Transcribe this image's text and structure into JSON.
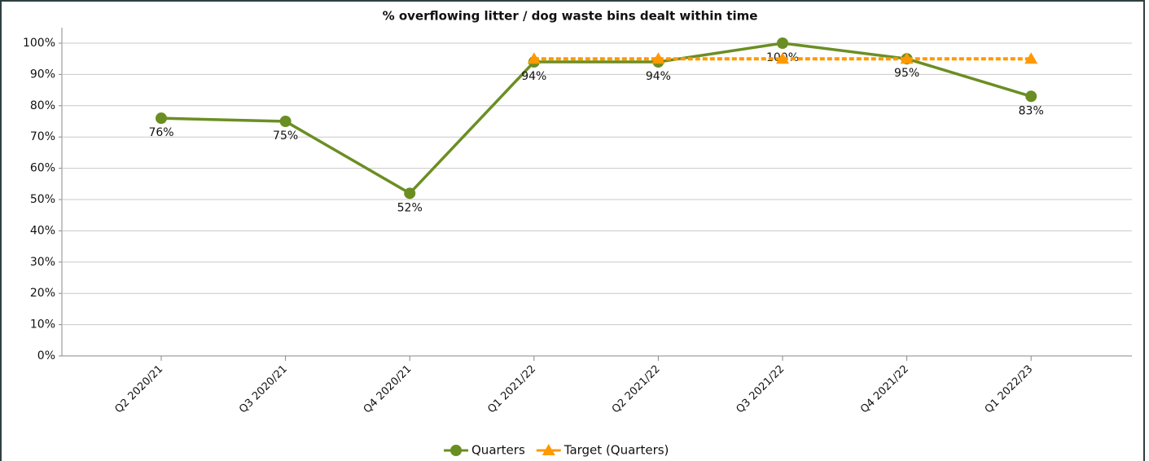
{
  "chart_data": {
    "type": "line",
    "title": "% overflowing litter / dog waste bins dealt within time",
    "categories": [
      "Q2 2020/21",
      "Q3 2020/21",
      "Q4 2020/21",
      "Q1 2021/22",
      "Q2 2021/22",
      "Q3 2021/22",
      "Q4 2021/22",
      "Q1 2022/23"
    ],
    "series": [
      {
        "name": "Quarters",
        "color": "#6b8e23",
        "values": [
          76,
          75,
          52,
          94,
          94,
          100,
          95,
          83
        ],
        "value_labels": [
          "76%",
          "75%",
          "52%",
          "94%",
          "94%",
          "100%",
          "95%",
          "83%"
        ]
      },
      {
        "name": "Target (Quarters)",
        "color": "#ff9900",
        "values": [
          null,
          null,
          null,
          95,
          95,
          95,
          95,
          95
        ]
      }
    ],
    "ylim": [
      0,
      100
    ],
    "yticks": [
      {
        "value": 0,
        "label": "0%"
      },
      {
        "value": 10,
        "label": "10%"
      },
      {
        "value": 20,
        "label": "20%"
      },
      {
        "value": 30,
        "label": "30%"
      },
      {
        "value": 40,
        "label": "40%"
      },
      {
        "value": 50,
        "label": "50%"
      },
      {
        "value": 60,
        "label": "60%"
      },
      {
        "value": 70,
        "label": "70%"
      },
      {
        "value": 80,
        "label": "80%"
      },
      {
        "value": 90,
        "label": "90%"
      },
      {
        "value": 100,
        "label": "100%"
      }
    ],
    "grid": true,
    "legend": "bottom"
  }
}
